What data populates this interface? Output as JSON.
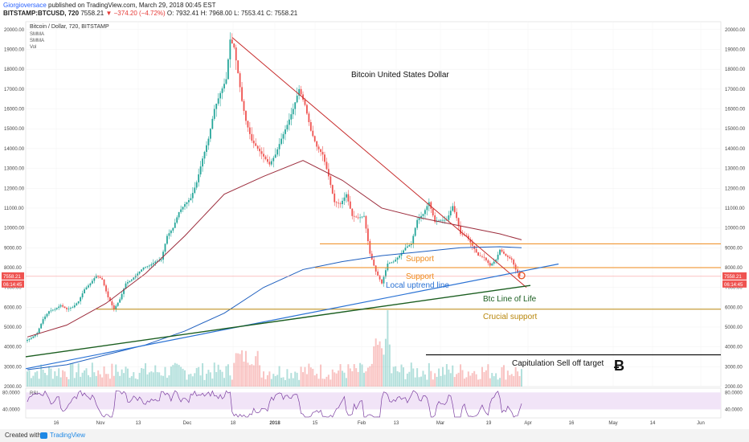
{
  "header": {
    "author": "Giorgioversace",
    "published": "published on TradingView.com, March 29, 2018 00:45 EST",
    "symbol": "BITSTAMP:BTCUSD, 720",
    "last": "7558.21",
    "change": "▼ −374.20 (−4.72%)",
    "ohlc": "O: 7932.41 H: 7968.00 L: 7553.41 C: 7558.21"
  },
  "legend": {
    "title": "Bitcoin / Dollar, 720, BITSTAMP",
    "ma1": "SMMA",
    "ma2": "SMMA",
    "vol": "Vol"
  },
  "footer": {
    "created": "Created with",
    "brand": "TradingView"
  },
  "colors": {
    "up": "#26a69a",
    "down": "#ef5350",
    "trend": "#c62828",
    "support": "#ef8a1a",
    "ma_blue": "#1e5fbf",
    "ma_red": "#9c2c3c",
    "life": "#1b5e20",
    "rsi": "#7b3fa0"
  },
  "chart_data": [
    {
      "type": "line",
      "title": "Bitcoin United States Dollar",
      "y_ticks": [
        "20000.00",
        "19000.00",
        "18000.00",
        "17000.00",
        "16000.00",
        "15000.00",
        "14000.00",
        "13000.00",
        "12000.00",
        "11000.00",
        "10000.00",
        "9000.00",
        "8000.00",
        "7000.00",
        "6000.00",
        "5000.00",
        "4000.00",
        "3000.00",
        "2000.00"
      ],
      "x_ticks": [
        "16",
        "Nov",
        "13",
        "Dec",
        "18",
        "2018",
        "15",
        "Feb",
        "13",
        "Mar",
        "19",
        "Apr",
        "16",
        "May",
        "14",
        "Jun"
      ],
      "ylim": [
        2000,
        20400
      ],
      "current_price": "7558.21",
      "countdown": "06:14:45",
      "price_path": [
        [
          0,
          4300
        ],
        [
          3,
          4450
        ],
        [
          6,
          4700
        ],
        [
          9,
          5400
        ],
        [
          12,
          5800
        ],
        [
          15,
          5900
        ],
        [
          18,
          6100
        ],
        [
          21,
          5900
        ],
        [
          24,
          6000
        ],
        [
          27,
          6300
        ],
        [
          30,
          6900
        ],
        [
          33,
          7200
        ],
        [
          36,
          7600
        ],
        [
          39,
          7400
        ],
        [
          42,
          6500
        ],
        [
          45,
          5900
        ],
        [
          48,
          6400
        ],
        [
          51,
          7200
        ],
        [
          54,
          7400
        ],
        [
          57,
          7700
        ],
        [
          60,
          8000
        ],
        [
          63,
          8100
        ],
        [
          66,
          8300
        ],
        [
          69,
          8400
        ],
        [
          72,
          9600
        ],
        [
          75,
          10000
        ],
        [
          78,
          10800
        ],
        [
          81,
          11200
        ],
        [
          84,
          11500
        ],
        [
          87,
          12300
        ],
        [
          90,
          13500
        ],
        [
          93,
          14500
        ],
        [
          96,
          16000
        ],
        [
          99,
          16800
        ],
        [
          102,
          17500
        ],
        [
          104,
          19500
        ],
        [
          106,
          19100
        ],
        [
          108,
          17800
        ],
        [
          110,
          16400
        ],
        [
          112,
          15400
        ],
        [
          115,
          14400
        ],
        [
          118,
          14000
        ],
        [
          121,
          13600
        ],
        [
          124,
          13200
        ],
        [
          127,
          13700
        ],
        [
          130,
          14500
        ],
        [
          133,
          15200
        ],
        [
          136,
          16000
        ],
        [
          139,
          17000
        ],
        [
          142,
          16200
        ],
        [
          145,
          14900
        ],
        [
          148,
          14100
        ],
        [
          151,
          13700
        ],
        [
          154,
          12600
        ],
        [
          157,
          11300
        ],
        [
          160,
          11200
        ],
        [
          163,
          11700
        ],
        [
          166,
          10600
        ],
        [
          169,
          10500
        ],
        [
          172,
          10600
        ],
        [
          175,
          8700
        ],
        [
          178,
          7800
        ],
        [
          181,
          7200
        ],
        [
          184,
          8200
        ],
        [
          187,
          8300
        ],
        [
          190,
          8600
        ],
        [
          193,
          9000
        ],
        [
          196,
          9200
        ],
        [
          199,
          10400
        ],
        [
          202,
          10700
        ],
        [
          205,
          11300
        ],
        [
          208,
          10300
        ],
        [
          211,
          10400
        ],
        [
          214,
          10400
        ],
        [
          217,
          11100
        ],
        [
          219,
          10500
        ],
        [
          221,
          9700
        ],
        [
          224,
          9600
        ],
        [
          227,
          9100
        ],
        [
          230,
          8600
        ],
        [
          233,
          8500
        ],
        [
          236,
          8100
        ],
        [
          239,
          8400
        ],
        [
          241,
          8900
        ],
        [
          244,
          8600
        ],
        [
          247,
          8400
        ],
        [
          249,
          7900
        ],
        [
          251,
          7560
        ]
      ],
      "ma_blue": [
        [
          0,
          2850
        ],
        [
          20,
          3100
        ],
        [
          40,
          3600
        ],
        [
          60,
          4100
        ],
        [
          80,
          4800
        ],
        [
          100,
          5700
        ],
        [
          120,
          7000
        ],
        [
          140,
          7900
        ],
        [
          160,
          8300
        ],
        [
          180,
          8600
        ],
        [
          200,
          8800
        ],
        [
          220,
          9000
        ],
        [
          240,
          9050
        ],
        [
          251,
          9000
        ]
      ],
      "ma_red": [
        [
          0,
          4500
        ],
        [
          20,
          5100
        ],
        [
          40,
          6200
        ],
        [
          60,
          7700
        ],
        [
          80,
          9600
        ],
        [
          100,
          11700
        ],
        [
          120,
          12600
        ],
        [
          140,
          13400
        ],
        [
          160,
          12400
        ],
        [
          180,
          11000
        ],
        [
          200,
          10500
        ],
        [
          220,
          10100
        ],
        [
          240,
          9700
        ],
        [
          251,
          9400
        ]
      ],
      "rsi_ylim": [
        20,
        90
      ],
      "rsi_ticks": [
        "80.0000",
        "40.0000"
      ],
      "rsi_label": "RSI",
      "annotations": {
        "support1": "Support",
        "support2": "Support",
        "uptrend": "Local uptrend line",
        "life": "Btc Line of Life",
        "crucial": "Crucial support",
        "capitulation": "Capitulation Sell off target"
      }
    }
  ]
}
